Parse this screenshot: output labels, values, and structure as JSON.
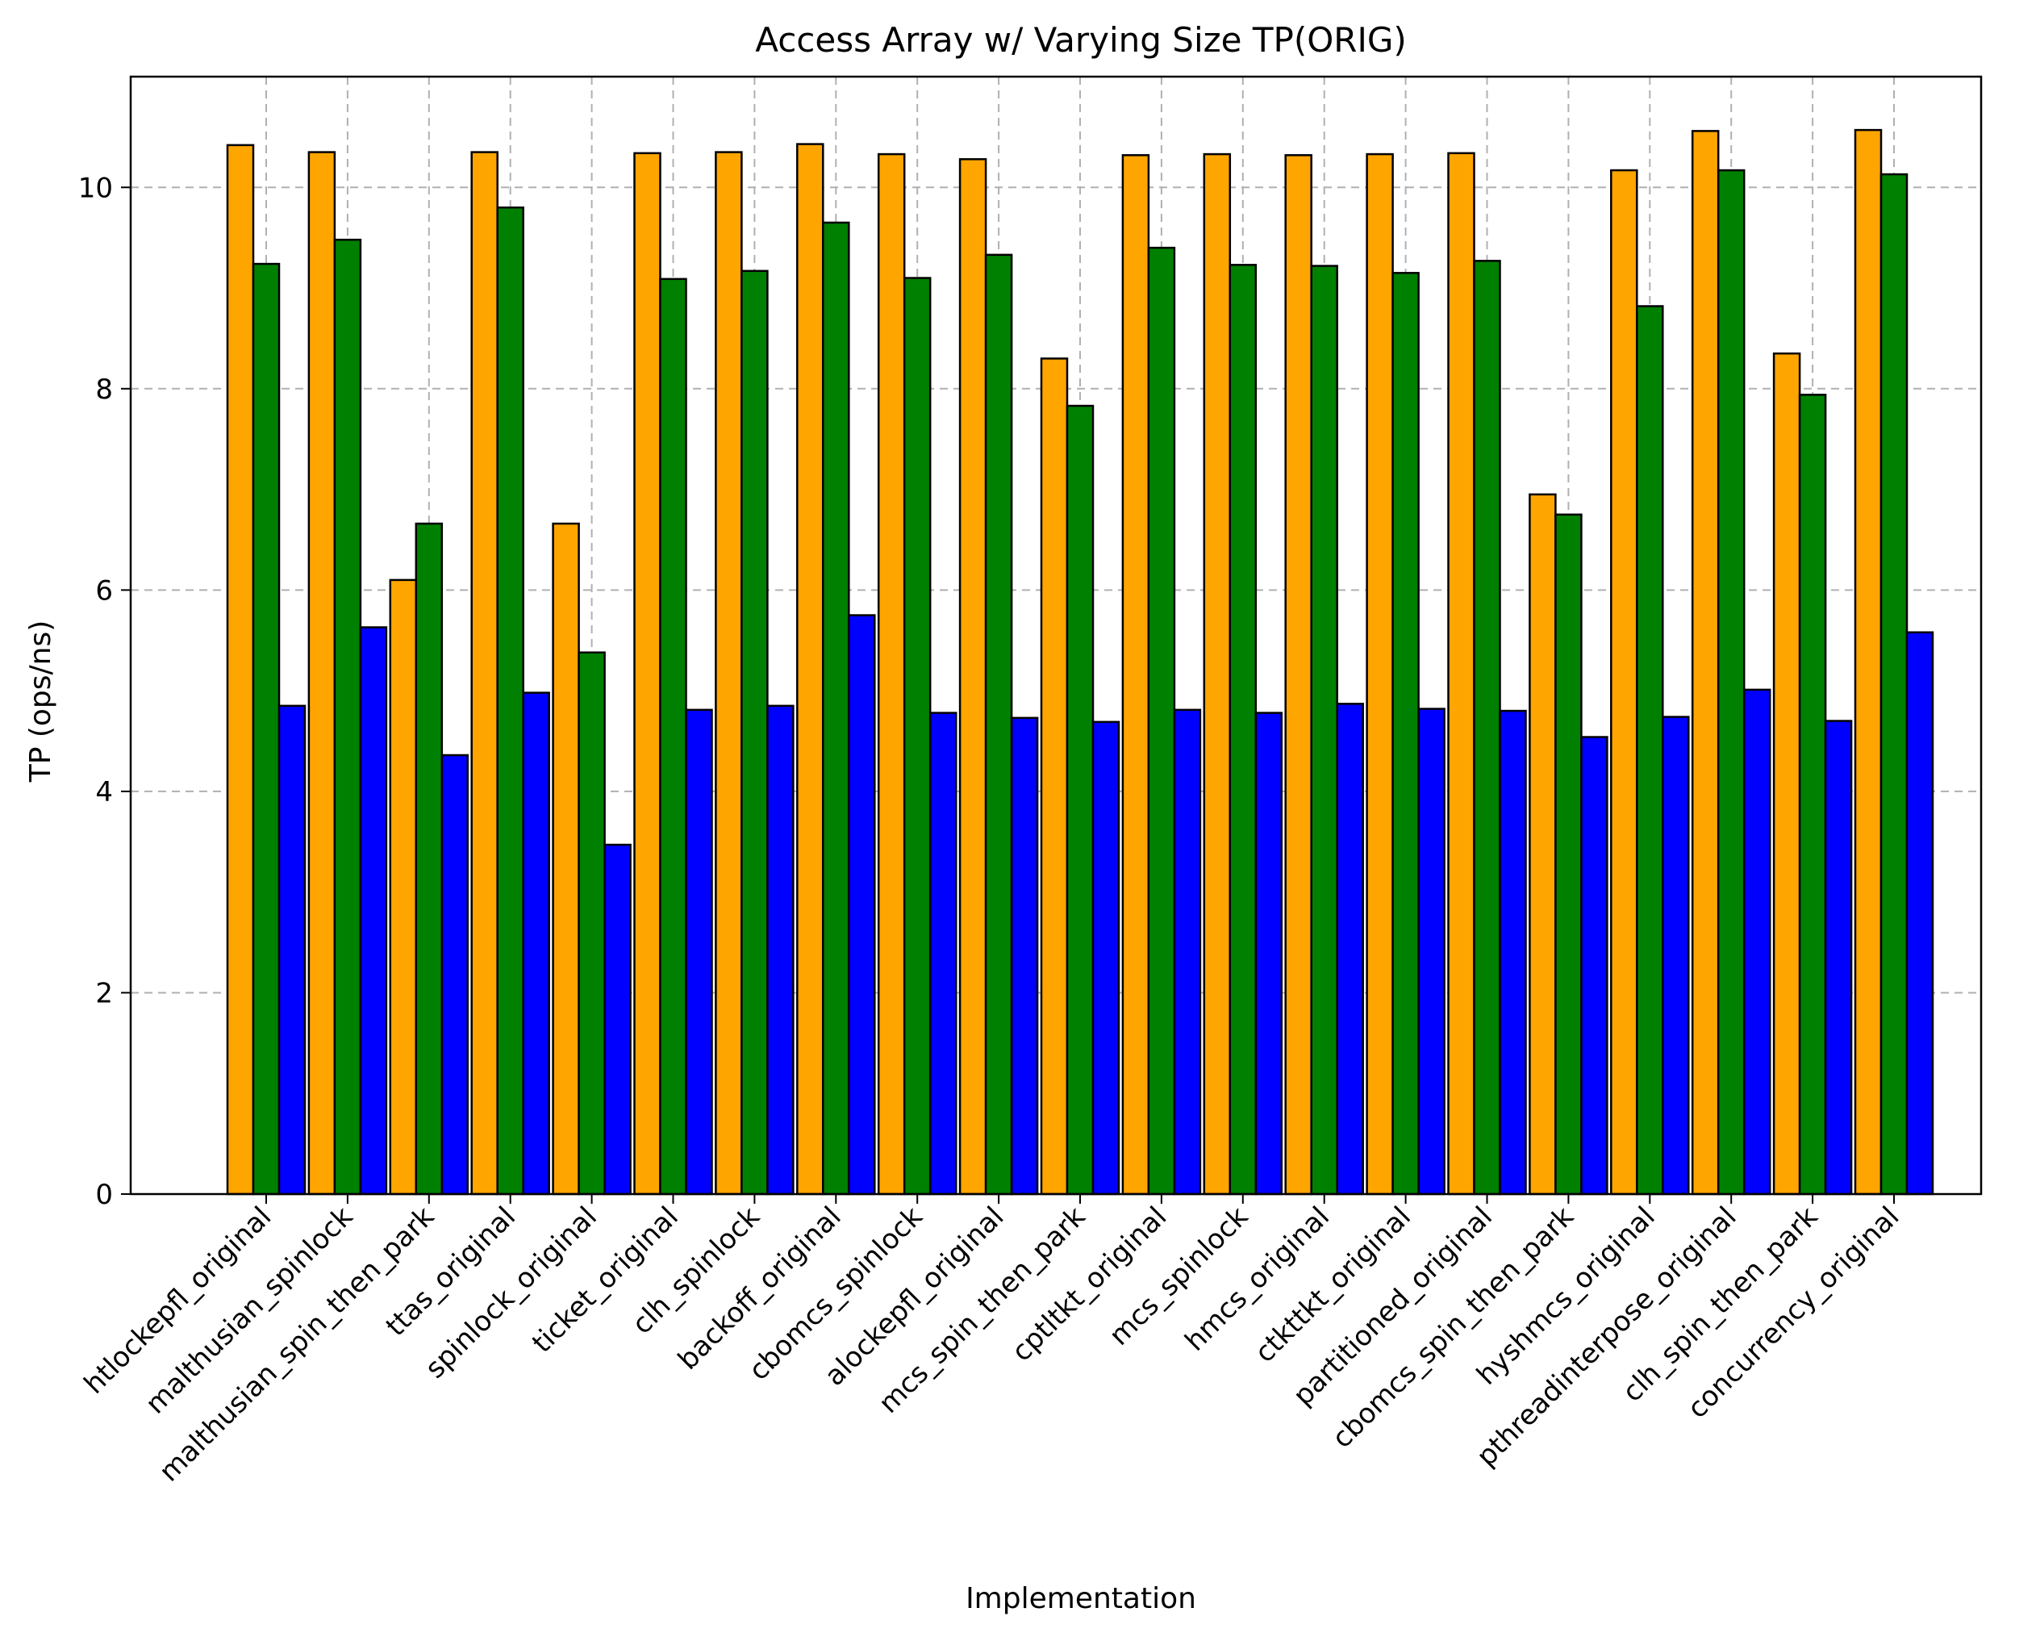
{
  "chart_data": {
    "type": "bar",
    "title": "Access Array w/ Varying Size TP(ORIG)",
    "xlabel": "Implementation",
    "ylabel": "TP (ops/ns)",
    "ylim": [
      0,
      11.1
    ],
    "yticks": [
      0,
      2,
      4,
      6,
      8,
      10
    ],
    "grid": true,
    "legend": "none",
    "categories": [
      "htlockepfl_original",
      "malthusian_spinlock",
      "malthusian_spin_then_park",
      "ttas_original",
      "spinlock_original",
      "ticket_original",
      "clh_spinlock",
      "backoff_original",
      "cbomcs_spinlock",
      "alockepfl_original",
      "mcs_spin_then_park",
      "cptltkt_original",
      "mcs_spinlock",
      "hmcs_original",
      "ctkttkt_original",
      "partitioned_original",
      "cbomcs_spin_then_park",
      "hyshmcs_original",
      "pthreadinterpose_original",
      "clh_spin_then_park",
      "concurrency_original"
    ],
    "series": [
      {
        "color": "#ffa500",
        "values": [
          10.42,
          10.35,
          6.1,
          10.35,
          6.66,
          10.34,
          10.35,
          10.43,
          10.33,
          10.28,
          8.3,
          10.32,
          10.33,
          10.32,
          10.33,
          10.34,
          6.95,
          10.17,
          10.56,
          8.35,
          10.57
        ]
      },
      {
        "color": "#008000",
        "values": [
          9.24,
          9.48,
          6.66,
          9.8,
          5.38,
          9.09,
          9.17,
          9.65,
          9.1,
          9.33,
          7.83,
          9.4,
          9.23,
          9.22,
          9.15,
          9.27,
          6.75,
          8.82,
          10.17,
          7.94,
          10.13
        ]
      },
      {
        "color": "#0000ff",
        "values": [
          4.85,
          5.63,
          4.36,
          4.98,
          3.47,
          4.81,
          4.85,
          5.75,
          4.78,
          4.73,
          4.69,
          4.81,
          4.78,
          4.87,
          4.82,
          4.8,
          4.54,
          4.74,
          5.01,
          4.7,
          5.58
        ]
      }
    ]
  }
}
